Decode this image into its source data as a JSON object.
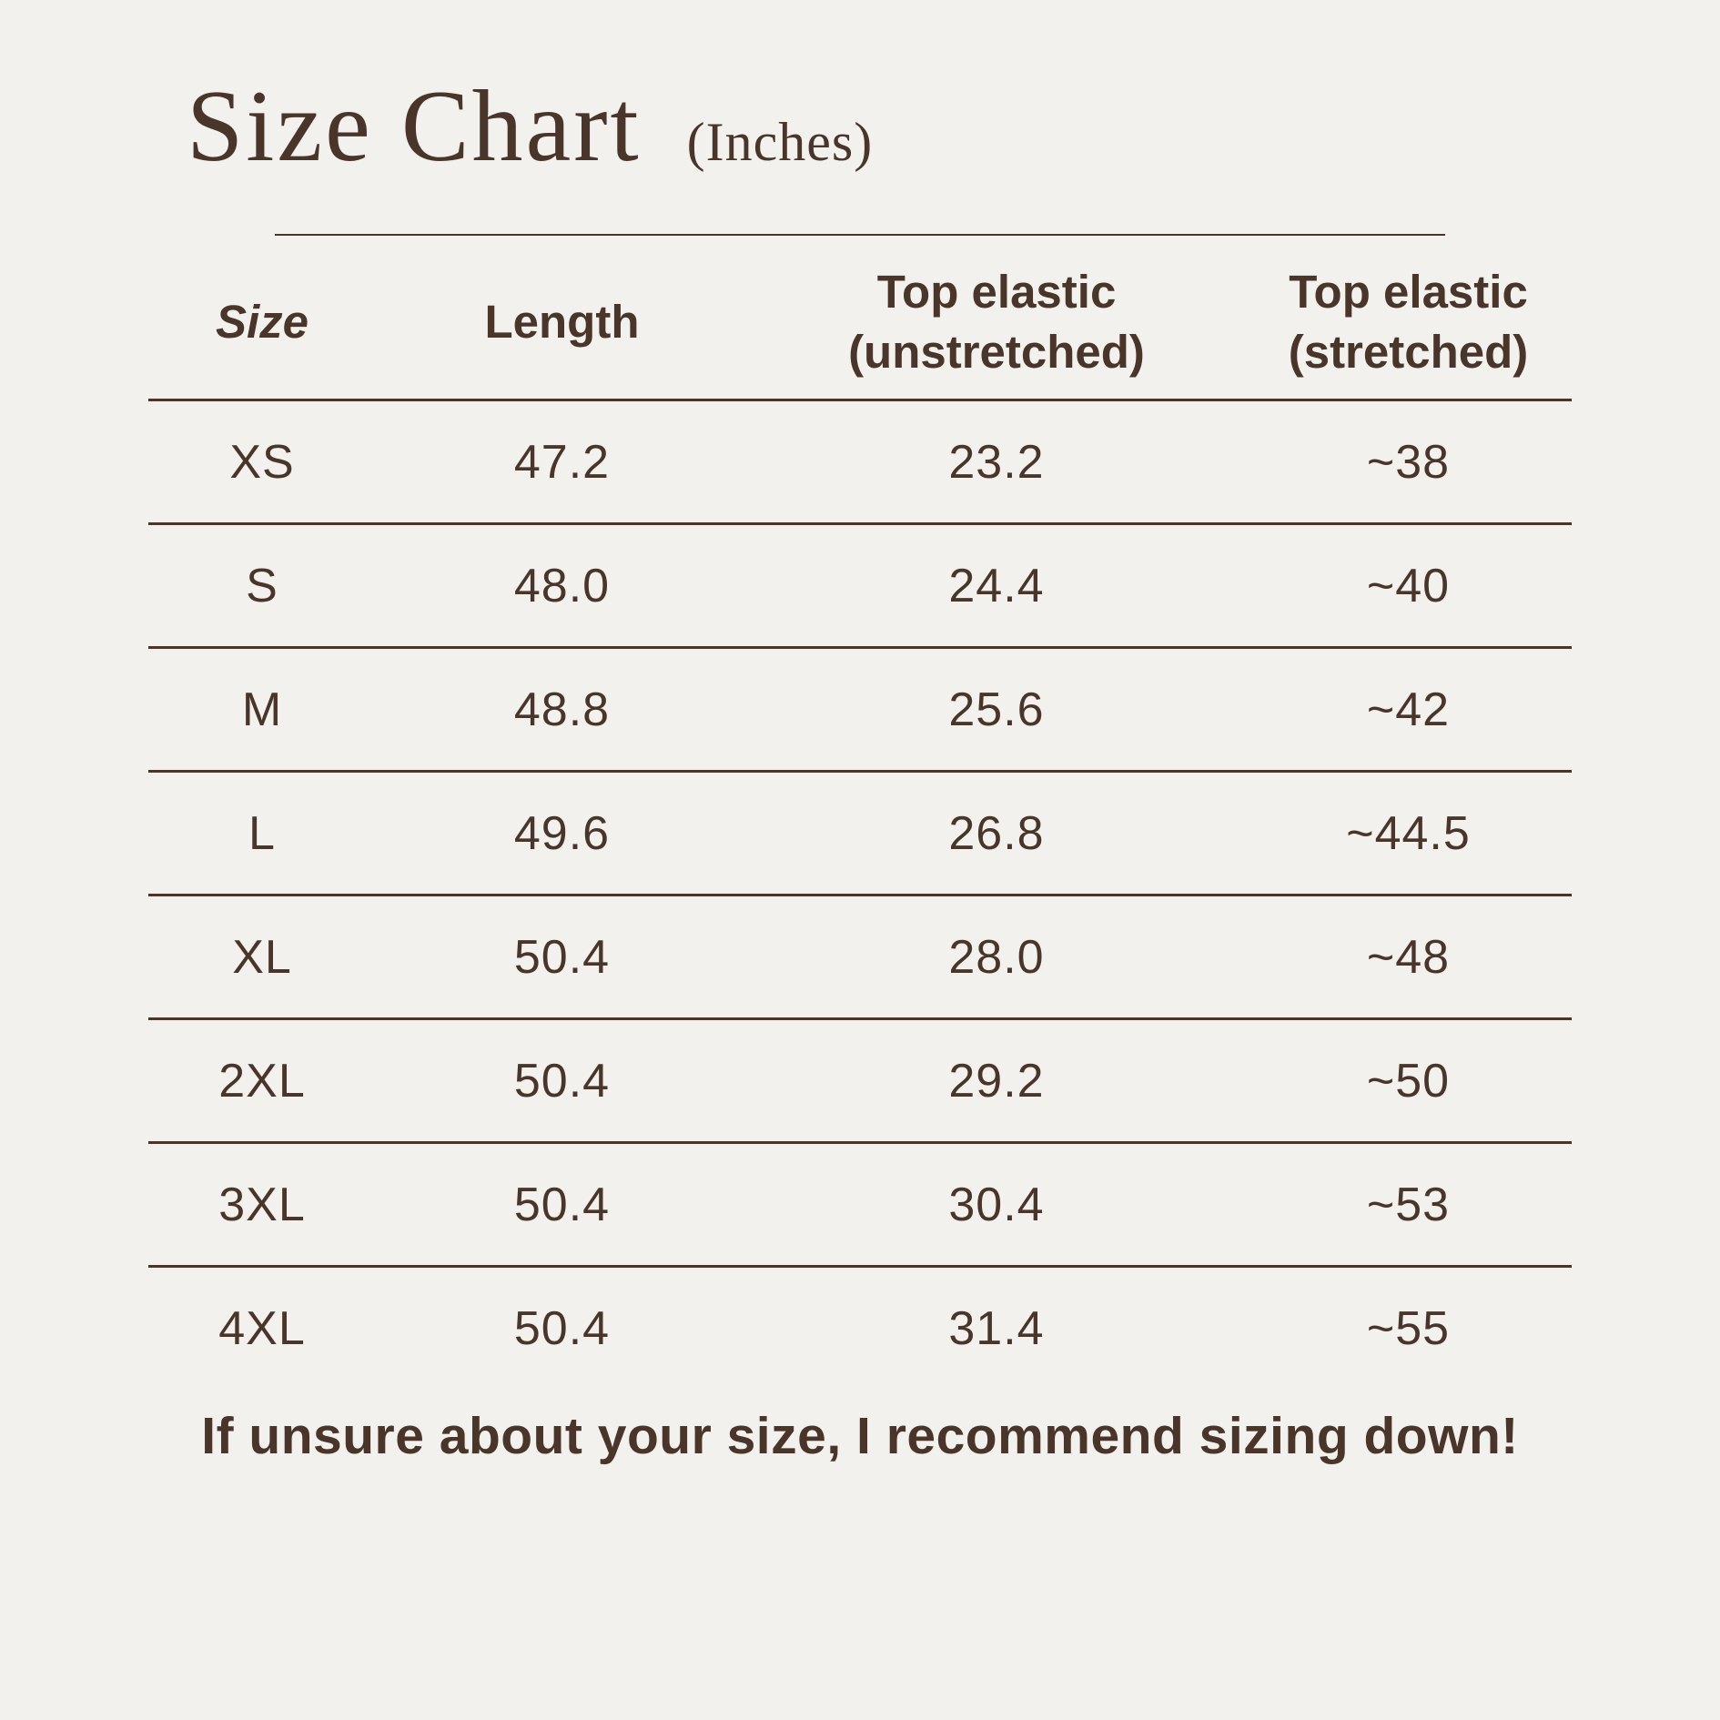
{
  "page": {
    "background_color": "#f2f1ee",
    "text_color": "#49352a"
  },
  "title": {
    "main": "Size Chart",
    "unit": "(Inches)"
  },
  "table": {
    "headers": [
      {
        "line1": "Size",
        "line2": ""
      },
      {
        "line1": "Length",
        "line2": ""
      },
      {
        "line1": "Top elastic",
        "line2": "(unstretched)"
      },
      {
        "line1": "Top elastic",
        "line2": "(stretched)"
      }
    ],
    "rows": [
      {
        "size": "XS",
        "length": "47.2",
        "unstretched": "23.2",
        "stretched": "~38"
      },
      {
        "size": "S",
        "length": "48.0",
        "unstretched": "24.4",
        "stretched": "~40"
      },
      {
        "size": "M",
        "length": "48.8",
        "unstretched": "25.6",
        "stretched": "~42"
      },
      {
        "size": "L",
        "length": "49.6",
        "unstretched": "26.8",
        "stretched": "~44.5"
      },
      {
        "size": "XL",
        "length": "50.4",
        "unstretched": "28.0",
        "stretched": "~48"
      },
      {
        "size": "2XL",
        "length": "50.4",
        "unstretched": "29.2",
        "stretched": "~50"
      },
      {
        "size": "3XL",
        "length": "50.4",
        "unstretched": "30.4",
        "stretched": "~53"
      },
      {
        "size": "4XL",
        "length": "50.4",
        "unstretched": "31.4",
        "stretched": "~55"
      }
    ]
  },
  "footer": {
    "note": "If unsure about your size, I recommend sizing down!"
  }
}
